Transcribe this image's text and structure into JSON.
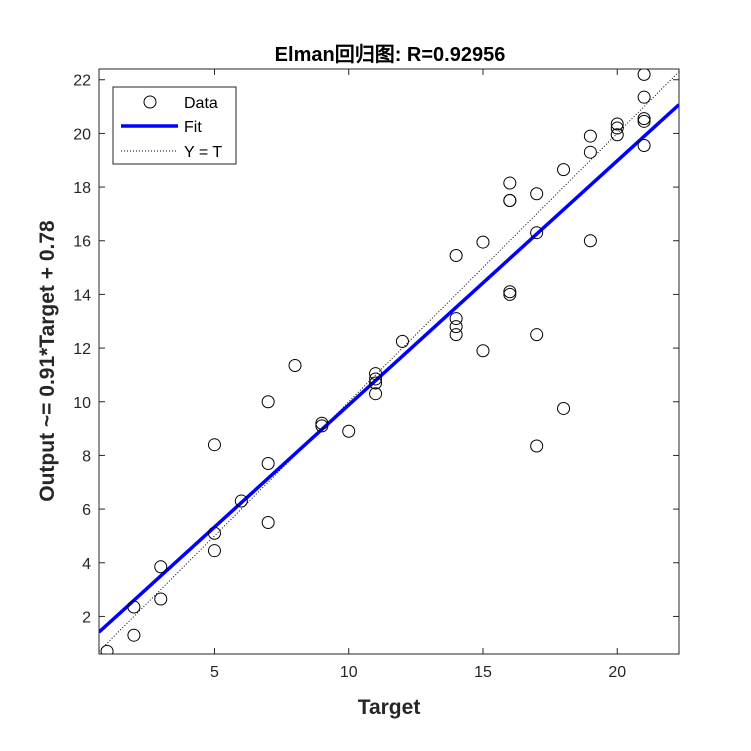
{
  "chart_data": {
    "type": "scatter",
    "title": "Elman回归图: R=0.92956",
    "xlabel": "Target",
    "ylabel": "Output ~= 0.91*Target + 0.78",
    "xlim": [
      0.7,
      22.3
    ],
    "ylim": [
      0.6,
      22.4
    ],
    "xticks": [
      5,
      10,
      15,
      20
    ],
    "yticks": [
      2,
      4,
      6,
      8,
      10,
      12,
      14,
      16,
      18,
      20,
      22
    ],
    "grid": false,
    "legend_position": "top-left",
    "legend": [
      "Data",
      "Fit",
      "Y = T"
    ],
    "fit": {
      "slope": 0.91,
      "intercept": 0.78,
      "color": "#0000FF"
    },
    "identity_line": {
      "color": "#000000",
      "style": "dotted"
    },
    "series": [
      {
        "name": "Data",
        "marker": "circle",
        "color": "#000000",
        "points": [
          [
            1,
            0.7
          ],
          [
            2,
            1.3
          ],
          [
            2,
            2.35
          ],
          [
            3,
            2.65
          ],
          [
            3,
            3.85
          ],
          [
            5,
            4.45
          ],
          [
            5,
            5.1
          ],
          [
            5,
            8.4
          ],
          [
            6,
            6.3
          ],
          [
            7,
            5.5
          ],
          [
            7,
            7.7
          ],
          [
            7,
            10.0
          ],
          [
            8,
            11.35
          ],
          [
            9,
            9.1
          ],
          [
            9,
            9.2
          ],
          [
            10,
            8.9
          ],
          [
            11,
            10.3
          ],
          [
            11,
            10.7
          ],
          [
            11,
            10.85
          ],
          [
            11,
            11.05
          ],
          [
            12,
            12.25
          ],
          [
            14,
            12.5
          ],
          [
            14,
            12.8
          ],
          [
            14,
            13.1
          ],
          [
            14,
            15.45
          ],
          [
            15,
            11.9
          ],
          [
            15,
            15.95
          ],
          [
            16,
            14.0
          ],
          [
            16,
            14.1
          ],
          [
            16,
            17.5
          ],
          [
            16,
            17.5
          ],
          [
            16,
            18.15
          ],
          [
            17,
            8.35
          ],
          [
            17,
            12.5
          ],
          [
            17,
            16.3
          ],
          [
            17,
            17.75
          ],
          [
            18,
            9.75
          ],
          [
            18,
            18.65
          ],
          [
            19,
            16.0
          ],
          [
            19,
            19.3
          ],
          [
            19,
            19.9
          ],
          [
            20,
            19.95
          ],
          [
            20,
            20.2
          ],
          [
            20,
            20.35
          ],
          [
            21,
            19.55
          ],
          [
            21,
            20.45
          ],
          [
            21,
            20.55
          ],
          [
            21,
            21.35
          ],
          [
            21,
            22.2
          ]
        ]
      }
    ]
  }
}
